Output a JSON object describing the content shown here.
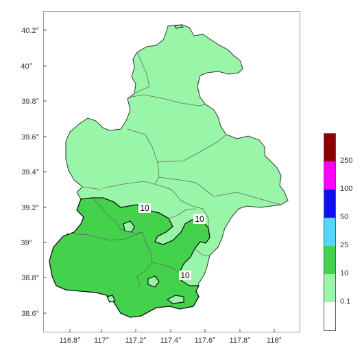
{
  "map": {
    "x_ticks": [
      "116.8°",
      "117°",
      "117.2°",
      "117.4°",
      "117.6°",
      "117.8°",
      "118°"
    ],
    "y_ticks": [
      "40.2°",
      "40°",
      "39.8°",
      "39.6°",
      "39.4°",
      "39.2°",
      "39°",
      "38.8°",
      "38.6°"
    ],
    "contour_labels": [
      "10",
      "10",
      "10"
    ]
  },
  "legend": {
    "labels": [
      "0.1",
      "10",
      "25",
      "50",
      "100",
      "250"
    ],
    "colors": [
      "#ffffff",
      "#99f5a8",
      "#44d14c",
      "#55d8ff",
      "#1010ee",
      "#ff00ff",
      "#8b0000"
    ]
  }
}
